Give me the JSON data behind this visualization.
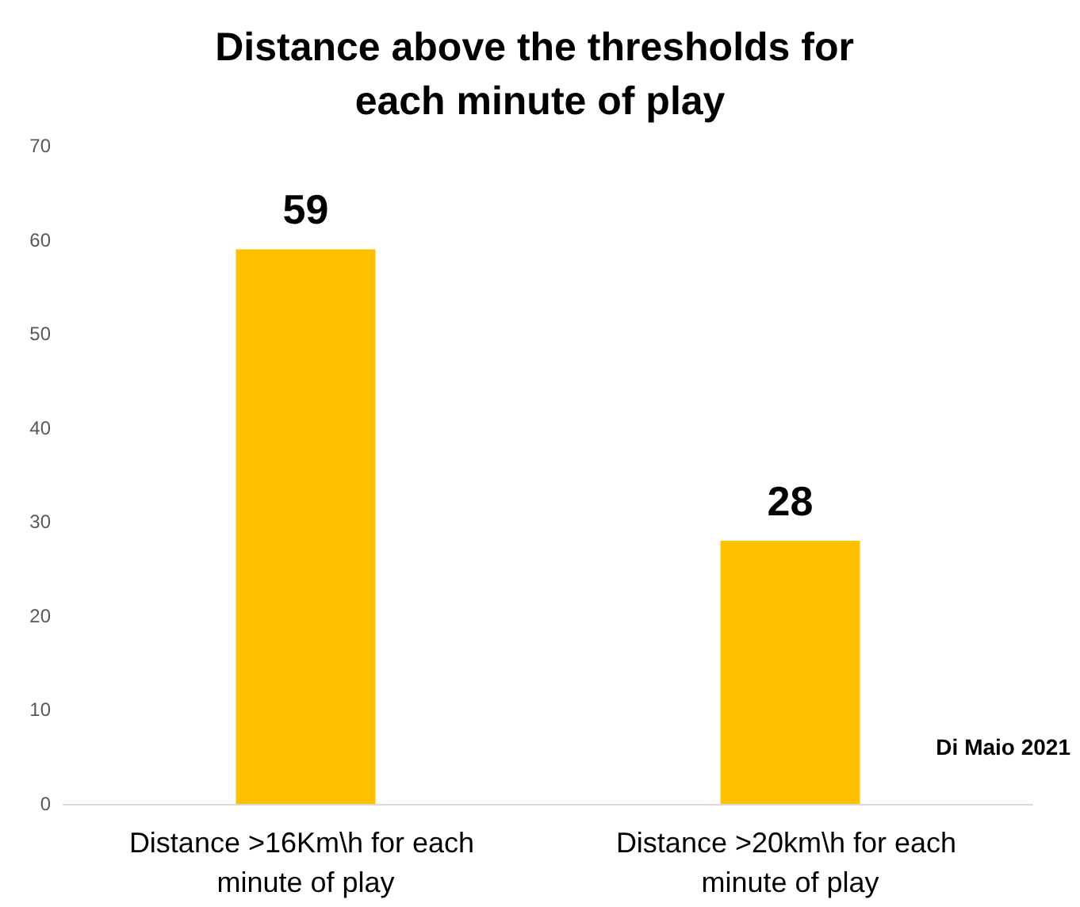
{
  "chart_data": {
    "type": "bar",
    "title": "Distance above the thresholds for each minute of play",
    "categories": [
      "Distance >16Km\\h for each minute of play",
      "Distance >20km\\h for each minute of play"
    ],
    "values": [
      59,
      28
    ],
    "color": "#ffc000",
    "ylim": [
      0,
      70
    ],
    "yticks": [
      0,
      10,
      20,
      30,
      40,
      50,
      60,
      70
    ],
    "grid": false,
    "data_labels": true,
    "annotations": [
      "Di Maio 2021"
    ]
  }
}
